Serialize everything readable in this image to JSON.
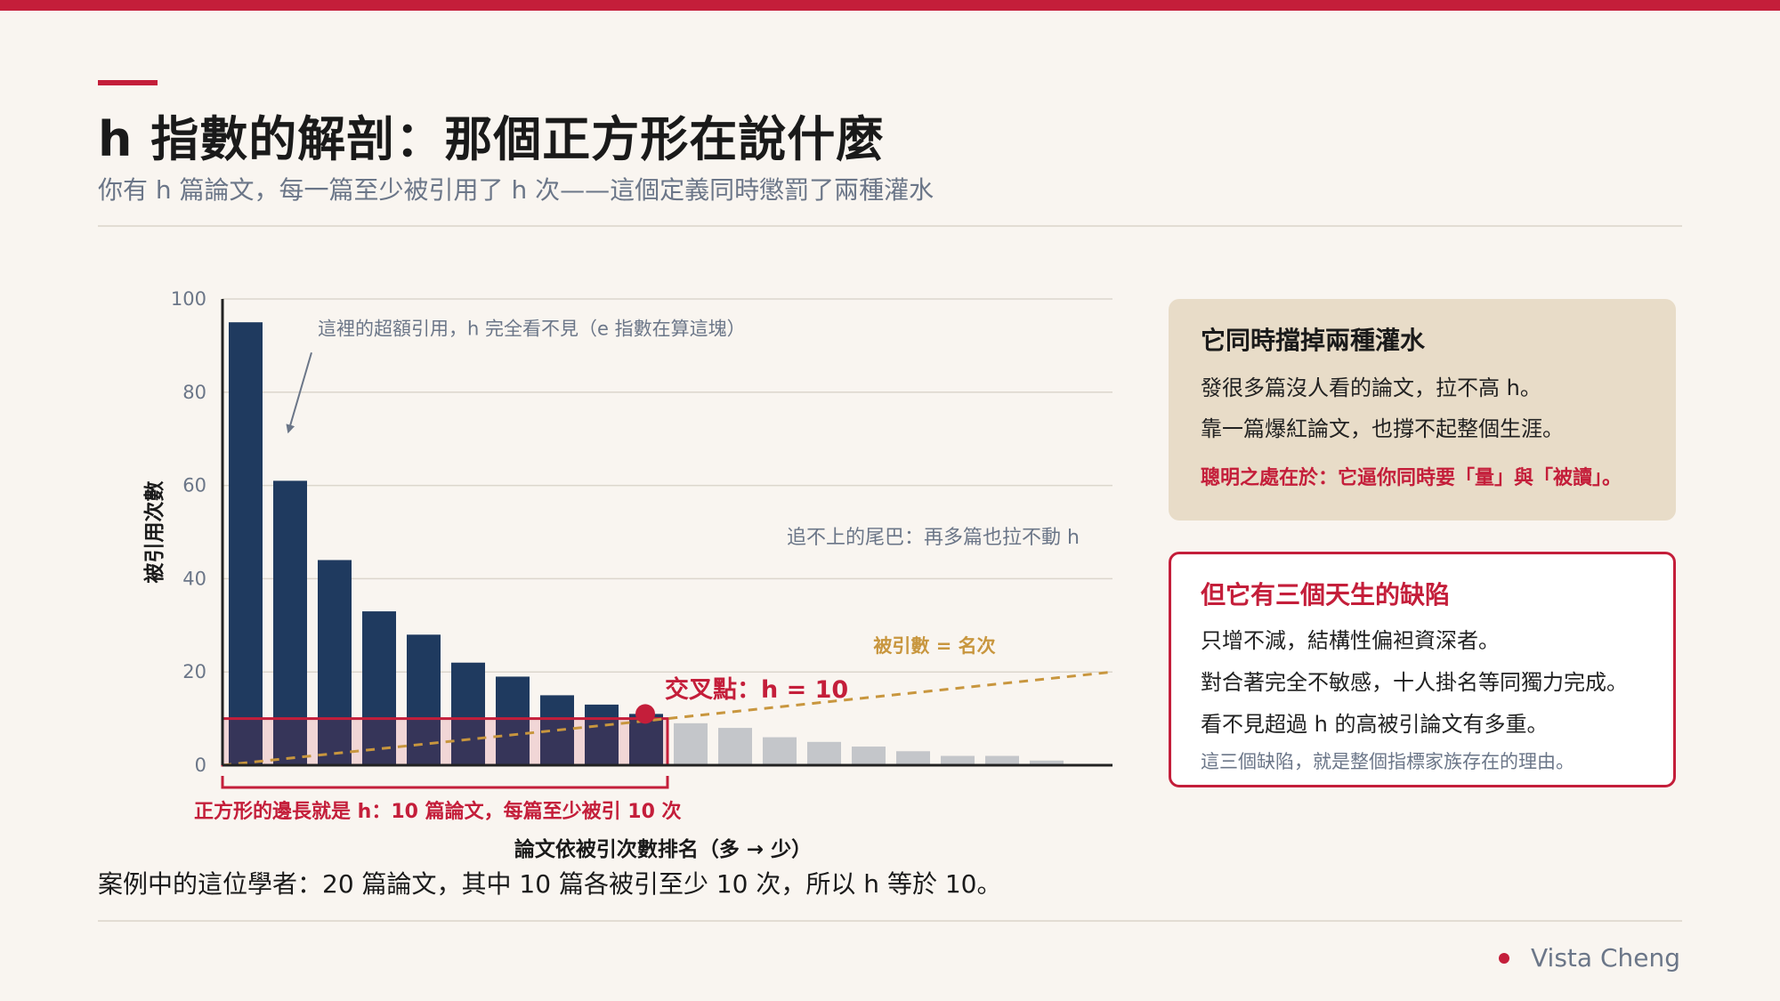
{
  "header": {
    "title": "h 指數的解剖：那個正方形在說什麼",
    "subtitle": "你有 h 篇論文，每一篇至少被引用了 h 次——這個定義同時懲罰了兩種灌水"
  },
  "chart_data": {
    "type": "bar",
    "xlabel": "論文依被引次數排名（多 → 少）",
    "ylabel": "被引用次數",
    "ylim": [
      0,
      100
    ],
    "yticks": [
      "0",
      "20",
      "40",
      "60",
      "80",
      "100"
    ],
    "grid": true,
    "values": [
      95,
      61,
      44,
      33,
      28,
      22,
      19,
      15,
      13,
      11,
      9,
      8,
      6,
      5,
      4,
      3,
      2,
      2,
      1,
      0
    ],
    "h_index": 10,
    "reference_line": {
      "label": "被引數 = 名次",
      "from": [
        0,
        0
      ],
      "to": [
        20,
        20
      ]
    },
    "annotations": {
      "excess": "這裡的超額引用，h 完全看不見（e 指數在算這塊）",
      "tail": "追不上的尾巴：再多篇也拉不動 h",
      "crossing": "交叉點：h = 10",
      "square": "正方形的邊長就是 h：10 篇論文，每篇至少被引 10 次"
    },
    "colors": {
      "core_bar": "#1f3a5f",
      "tail_bar": "#c4c6ca",
      "accent": "#c41e3a",
      "reference": "#c8963e",
      "annotation": "#6b7688"
    }
  },
  "caption": "案例中的這位學者：20 篇論文，其中 10 篇各被引至少 10 次，所以 h 等於 10。",
  "card_strengths": {
    "title": "它同時擋掉兩種灌水",
    "lines": [
      "發很多篇沒人看的論文，拉不高 h。",
      "靠一篇爆紅論文，也撐不起整個生涯。"
    ],
    "emphasis": "聰明之處在於：它逼你同時要「量」與「被讀」。"
  },
  "card_flaws": {
    "title": "但它有三個天生的缺陷",
    "lines": [
      "只增不減，結構性偏袒資深者。",
      "對合著完全不敏感，十人掛名等同獨力完成。",
      "看不見超過 h 的高被引論文有多重。"
    ],
    "note": "這三個缺陷，就是整個指標家族存在的理由。"
  },
  "footer": {
    "author": "Vista Cheng"
  }
}
